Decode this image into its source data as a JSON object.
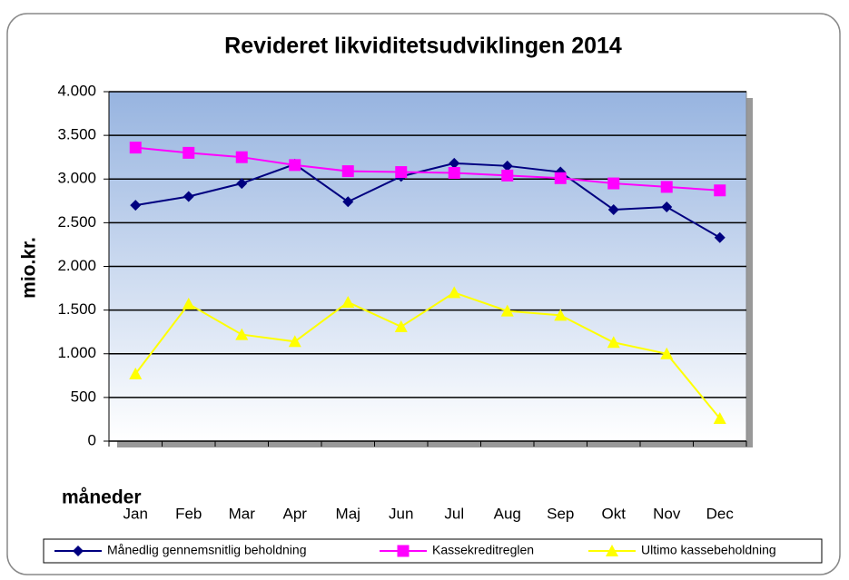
{
  "chart_data": {
    "type": "line",
    "title": "Revideret likviditetsudviklingen 2014",
    "x_label": "måneder",
    "y_label": "mio.kr.",
    "categories": [
      "Jan",
      "Feb",
      "Mar",
      "Apr",
      "Maj",
      "Jun",
      "Jul",
      "Aug",
      "Sep",
      "Okt",
      "Nov",
      "Dec"
    ],
    "series": [
      {
        "name": "Månedlig gennemsnitlig beholdning",
        "color": "#000080",
        "marker": "diamond",
        "values": [
          2700,
          2800,
          2950,
          3170,
          2740,
          3030,
          3180,
          3150,
          3080,
          2650,
          2680,
          2330
        ]
      },
      {
        "name": "Kassekreditreglen",
        "color": "#ff00ff",
        "marker": "square",
        "values": [
          3360,
          3300,
          3250,
          3160,
          3090,
          3080,
          3070,
          3040,
          3010,
          2950,
          2910,
          2870
        ]
      },
      {
        "name": "Ultimo kassebeholdning",
        "color": "#ffff00",
        "marker": "triangle",
        "values": [
          770,
          1570,
          1220,
          1140,
          1590,
          1310,
          1700,
          1490,
          1440,
          1130,
          1000,
          260
        ]
      }
    ],
    "ylim": [
      0,
      4000
    ],
    "yticks": [
      0,
      500,
      {
        "value": 1000,
        "label": "1.000"
      },
      {
        "value": 1500,
        "label": "1.500"
      },
      {
        "value": 2000,
        "label": "2.000"
      },
      {
        "value": 2500,
        "label": "2.500"
      },
      {
        "value": 3000,
        "label": "3.000"
      },
      {
        "value": 3500,
        "label": "3.500"
      },
      {
        "value": 4000,
        "label": "4.000"
      }
    ],
    "grid": true,
    "legend": "bottom"
  }
}
